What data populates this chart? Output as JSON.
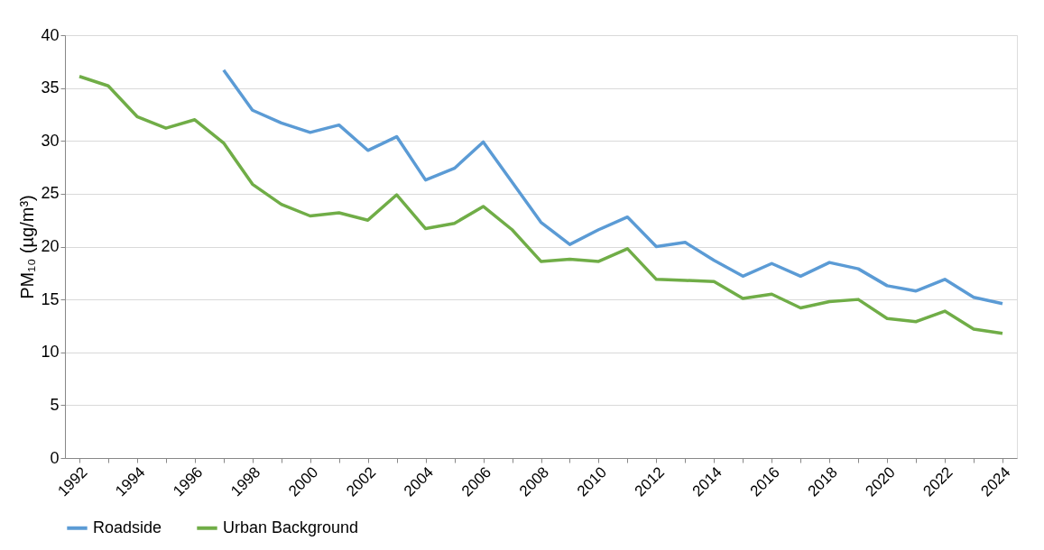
{
  "chart_data": {
    "type": "line",
    "ylabel": "PM₁₀ (µg/m³)",
    "categories": [
      "1992",
      null,
      "1994",
      null,
      "1996",
      null,
      "1998",
      null,
      "2000",
      null,
      "2002",
      null,
      "2004",
      null,
      "2006",
      null,
      "2008",
      null,
      "2010",
      null,
      "2012",
      null,
      "2014",
      null,
      "2016",
      null,
      "2018",
      null,
      "2020",
      null,
      "2022",
      null,
      "2024"
    ],
    "series": [
      {
        "name": "Roadside",
        "color": "#5b9bd5",
        "values": [
          null,
          null,
          null,
          null,
          null,
          36.7,
          32.9,
          31.7,
          30.8,
          31.5,
          29.1,
          30.4,
          26.3,
          27.4,
          29.9,
          26.1,
          22.3,
          20.2,
          21.6,
          22.8,
          20.0,
          20.4,
          18.7,
          17.2,
          18.4,
          17.2,
          18.5,
          17.9,
          16.3,
          15.8,
          16.9,
          15.2,
          14.6
        ]
      },
      {
        "name": "Urban Background",
        "color": "#70ad47",
        "values": [
          36.1,
          35.2,
          32.3,
          31.2,
          32.0,
          29.8,
          25.9,
          24.0,
          22.9,
          23.2,
          22.5,
          24.9,
          21.7,
          22.2,
          23.8,
          21.6,
          18.6,
          18.8,
          18.6,
          19.8,
          16.9,
          16.8,
          16.7,
          15.1,
          15.5,
          14.2,
          14.8,
          15.0,
          13.2,
          12.9,
          13.9,
          12.2,
          11.8
        ]
      }
    ],
    "ylim": [
      0,
      40
    ],
    "yticks": [
      0,
      5,
      10,
      15,
      20,
      25,
      30,
      35,
      40
    ],
    "grid": "y",
    "legend": "bottom",
    "marker": "none",
    "line_style": "solid"
  }
}
